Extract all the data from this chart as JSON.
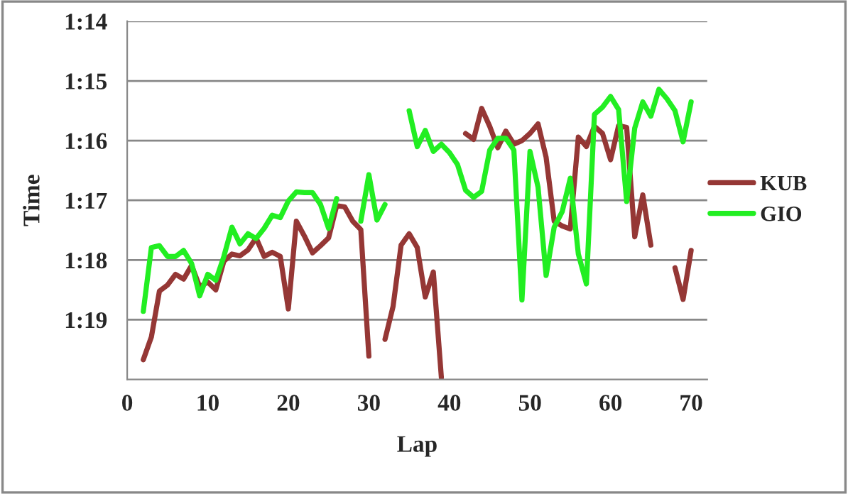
{
  "chart_data": {
    "type": "line",
    "xlabel": "Lap",
    "ylabel": "Time",
    "x": [
      2,
      3,
      4,
      5,
      6,
      7,
      8,
      9,
      10,
      11,
      12,
      13,
      14,
      15,
      16,
      17,
      18,
      19,
      20,
      21,
      22,
      23,
      24,
      25,
      26,
      27,
      28,
      29,
      30,
      31,
      32,
      33,
      34,
      35,
      36,
      37,
      38,
      39,
      40,
      41,
      42,
      43,
      44,
      45,
      46,
      47,
      48,
      49,
      50,
      51,
      52,
      53,
      54,
      55,
      56,
      57,
      58,
      59,
      60,
      61,
      62,
      63,
      64,
      65,
      66,
      67,
      68,
      69,
      70
    ],
    "series": [
      {
        "name": "KUB",
        "color": "#953735",
        "values": [
          79.67,
          79.29,
          78.52,
          78.42,
          78.24,
          78.32,
          78.09,
          78.45,
          78.37,
          78.5,
          78.02,
          77.9,
          77.93,
          77.83,
          77.63,
          77.94,
          77.87,
          77.94,
          78.82,
          77.35,
          77.6,
          77.88,
          77.76,
          77.63,
          77.09,
          77.11,
          77.35,
          77.49,
          79.61,
          null,
          79.33,
          78.78,
          77.75,
          77.56,
          77.79,
          78.62,
          78.2,
          79.97,
          null,
          null,
          75.88,
          75.98,
          75.46,
          75.76,
          76.12,
          75.84,
          76.06,
          76.0,
          75.88,
          75.72,
          76.28,
          77.35,
          77.43,
          77.48,
          75.94,
          76.1,
          75.76,
          75.88,
          76.32,
          75.75,
          75.78,
          77.61,
          76.91,
          77.75,
          null,
          null,
          78.13,
          78.66,
          77.84
        ]
      },
      {
        "name": "GIO",
        "color": "#22ee22",
        "values": [
          78.86,
          77.79,
          77.76,
          77.94,
          77.94,
          77.84,
          78.06,
          78.6,
          78.24,
          78.34,
          77.94,
          77.45,
          77.73,
          77.56,
          77.64,
          77.47,
          77.25,
          77.29,
          77.01,
          76.86,
          76.87,
          76.87,
          77.07,
          77.47,
          76.97,
          null,
          null,
          77.35,
          76.57,
          77.33,
          77.07,
          null,
          null,
          75.5,
          76.1,
          75.83,
          76.18,
          76.06,
          76.2,
          76.4,
          76.83,
          76.95,
          76.85,
          76.16,
          75.96,
          75.96,
          76.16,
          78.67,
          76.18,
          76.78,
          78.26,
          77.45,
          77.19,
          76.63,
          77.9,
          78.4,
          75.56,
          75.44,
          75.26,
          75.48,
          77.02,
          75.79,
          75.35,
          75.59,
          75.14,
          75.3,
          75.5,
          76.02,
          75.35
        ]
      }
    ],
    "xlim": [
      0,
      72
    ],
    "xticks": [
      0,
      10,
      20,
      30,
      40,
      50,
      60,
      70
    ],
    "ylim": [
      80,
      74
    ],
    "yticks": [
      {
        "value": 74,
        "label": "1:14"
      },
      {
        "value": 75,
        "label": "1:15"
      },
      {
        "value": 76,
        "label": "1:16"
      },
      {
        "value": 77,
        "label": "1:17"
      },
      {
        "value": 78,
        "label": "1:18"
      },
      {
        "value": 79,
        "label": "1:19"
      }
    ],
    "grid": "y",
    "legend": "right",
    "marker": "none",
    "line_style": "solid"
  }
}
